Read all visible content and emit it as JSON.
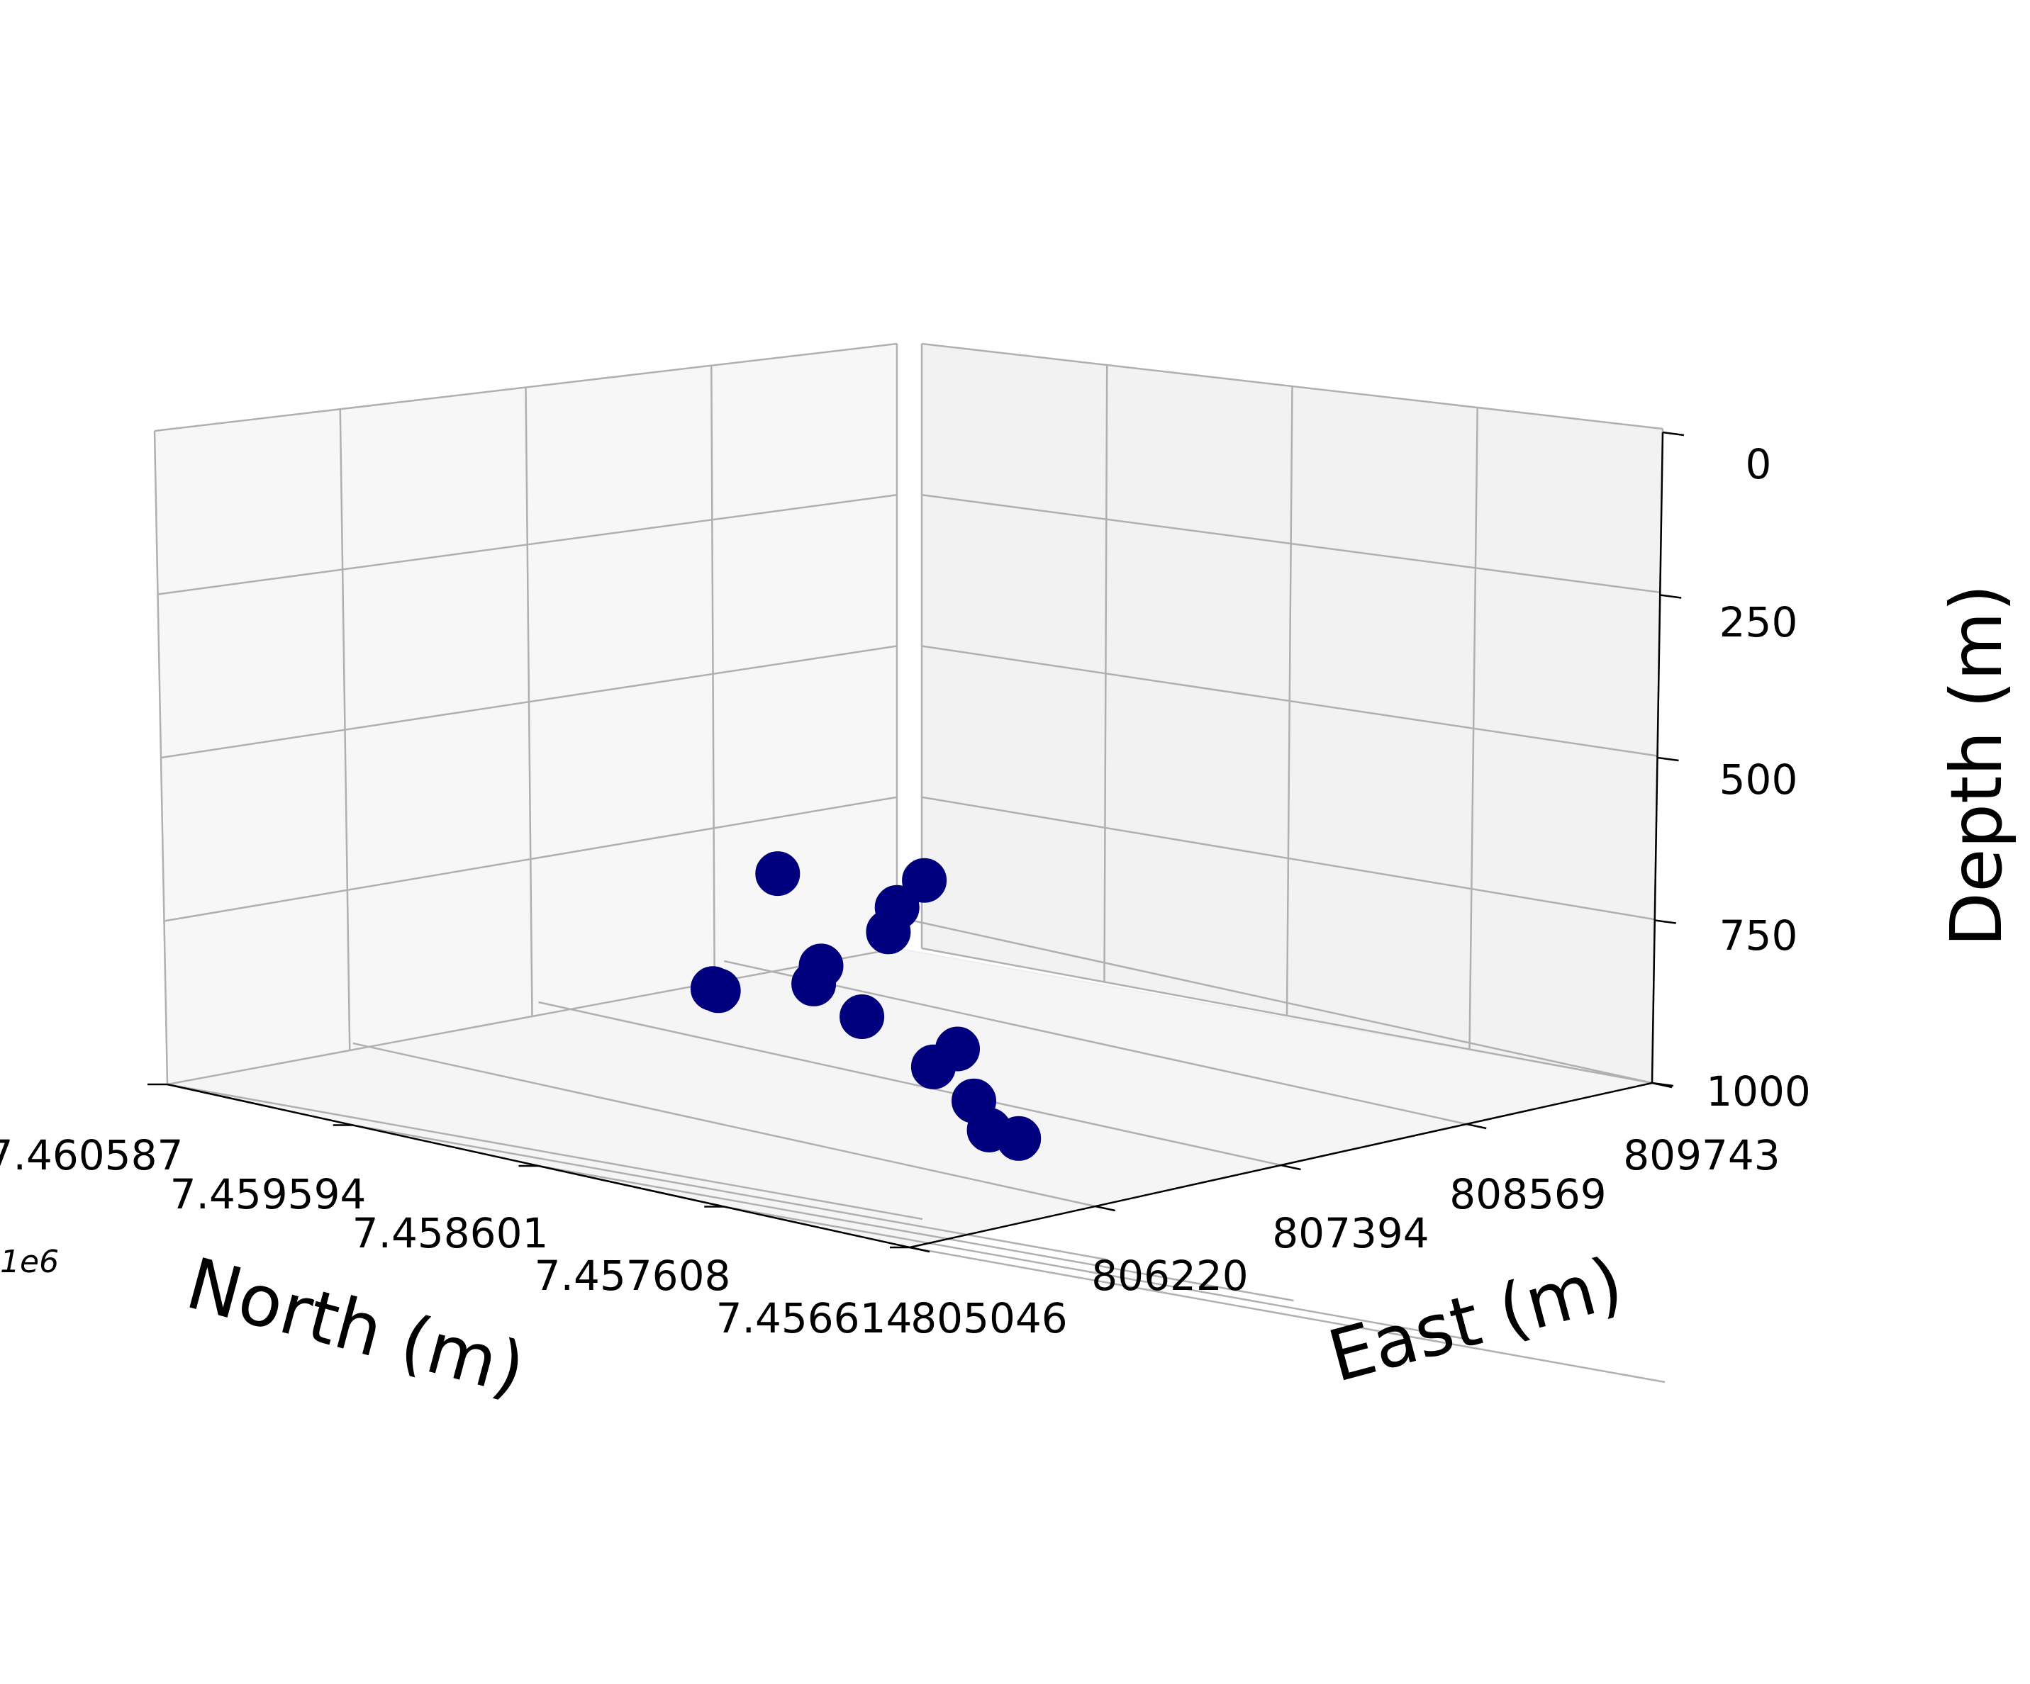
{
  "chart_data": {
    "type": "scatter",
    "projection": "3d",
    "grid": true,
    "axes": {
      "north": {
        "label": "North (m)",
        "offset_text": "1e6",
        "ticks": [
          "7.460587",
          "7.459594",
          "7.458601",
          "7.457608",
          "7.456614"
        ],
        "range": [
          7.456614,
          7.460587
        ]
      },
      "east": {
        "label": "East (m)",
        "ticks": [
          "805046",
          "806220",
          "807394",
          "808569",
          "809743"
        ],
        "range": [
          805046,
          809743
        ]
      },
      "depth": {
        "label": "Depth (m)",
        "ticks": [
          "0",
          "250",
          "500",
          "750",
          "1000"
        ],
        "range": [
          0,
          1000
        ],
        "inverted": true
      }
    },
    "marker_color": "#00007f",
    "points": [
      {
        "north": 7.45672,
        "east": 805260,
        "depth": 390
      },
      {
        "north": 7.4569,
        "east": 805300,
        "depth": 445
      },
      {
        "north": 7.45735,
        "east": 805080,
        "depth": 430
      },
      {
        "north": 7.45705,
        "east": 805420,
        "depth": 490
      },
      {
        "north": 7.4572,
        "east": 805130,
        "depth": 600
      },
      {
        "north": 7.45765,
        "east": 805060,
        "depth": 645
      },
      {
        "north": 7.45735,
        "east": 805350,
        "depth": 570
      },
      {
        "north": 7.4572,
        "east": 805430,
        "depth": 640
      },
      {
        "north": 7.4568,
        "east": 805560,
        "depth": 660
      },
      {
        "north": 7.4578,
        "east": 805200,
        "depth": 645
      },
      {
        "north": 7.4571,
        "east": 806010,
        "depth": 745
      },
      {
        "north": 7.4568,
        "east": 805940,
        "depth": 790
      },
      {
        "north": 7.45682,
        "east": 805780,
        "depth": 785
      },
      {
        "north": 7.45705,
        "east": 805700,
        "depth": 700
      }
    ]
  }
}
